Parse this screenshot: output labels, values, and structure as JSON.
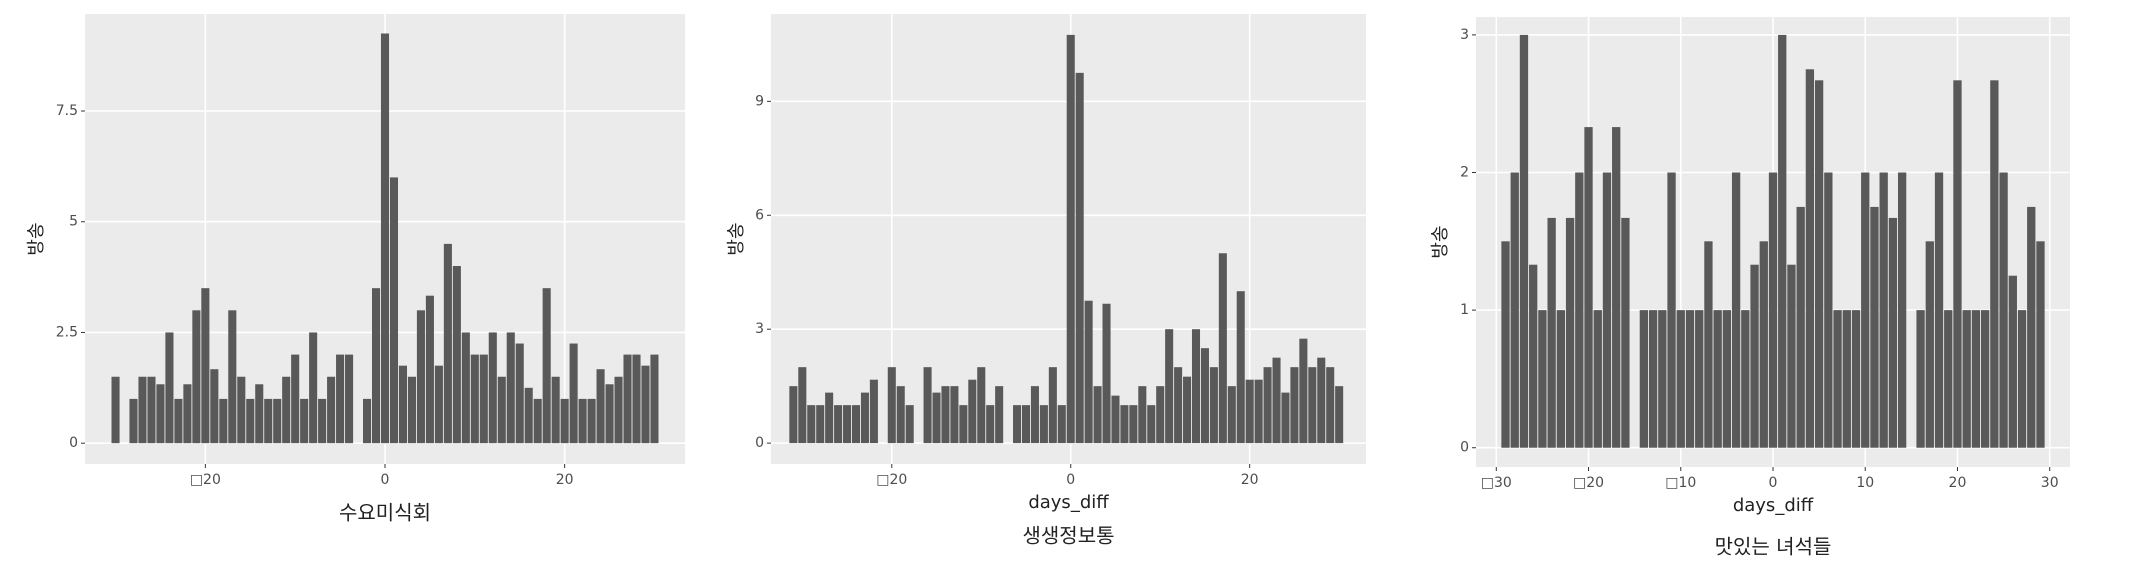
{
  "chart_data": [
    {
      "type": "bar",
      "title": "수요미식회",
      "y_label": "방송",
      "color": "#595959",
      "grid": true,
      "x": [
        -30,
        -28,
        -27,
        -26,
        -25,
        -24,
        -23,
        -22,
        -21,
        -20,
        -19,
        -18,
        -17,
        -16,
        -15,
        -14,
        -13,
        -12,
        -11,
        -10,
        -9,
        -8,
        -7,
        -6,
        -5,
        -4,
        -2,
        -1,
        0,
        1,
        2,
        3,
        4,
        5,
        6,
        7,
        8,
        9,
        10,
        11,
        12,
        13,
        14,
        15,
        16,
        17,
        18,
        19,
        20,
        21,
        22,
        23,
        24,
        25,
        26,
        27,
        28,
        29,
        30
      ],
      "values": [
        1.5,
        1,
        1.5,
        1.5,
        1.33,
        2.5,
        1,
        1.33,
        3,
        3.5,
        1.67,
        1,
        3,
        1.5,
        1,
        1.33,
        1,
        1,
        1.5,
        2,
        1,
        2.5,
        1,
        1.5,
        2,
        2,
        1,
        3.5,
        9.25,
        6,
        1.75,
        1.5,
        3,
        3.33,
        1.75,
        4.5,
        4,
        2.5,
        2,
        2,
        2.5,
        1.5,
        2.5,
        2.25,
        1.25,
        1,
        3.5,
        1.5,
        1,
        2.25,
        1,
        1,
        1.67,
        1.33,
        1.5,
        2,
        2,
        1.75,
        2
      ],
      "xlim": [
        -33.4,
        33.4
      ],
      "ylim": [
        -0.47,
        9.69
      ],
      "xticks": [
        {
          "value": -20,
          "label": "□20"
        },
        0,
        20
      ],
      "yticks": [
        0,
        2.5,
        5,
        7.5
      ]
    },
    {
      "type": "bar",
      "title": "생생정보통",
      "x_label": "days_diff",
      "y_label": "방송",
      "color": "#595959",
      "grid": true,
      "x": [
        -31,
        -30,
        -29,
        -28,
        -27,
        -26,
        -25,
        -24,
        -23,
        -22,
        -20,
        -19,
        -18,
        -16,
        -15,
        -14,
        -13,
        -12,
        -11,
        -10,
        -9,
        -8,
        -6,
        -5,
        -4,
        -3,
        -2,
        -1,
        0,
        1,
        2,
        3,
        4,
        5,
        6,
        7,
        8,
        9,
        10,
        11,
        12,
        13,
        14,
        15,
        16,
        17,
        18,
        19,
        20,
        21,
        22,
        23,
        24,
        25,
        26,
        27,
        28,
        29,
        30
      ],
      "values": [
        1.5,
        2,
        1,
        1,
        1.33,
        1,
        1,
        1,
        1.33,
        1.67,
        2,
        1.5,
        1,
        2,
        1.33,
        1.5,
        1.5,
        1,
        1.67,
        2,
        1,
        1.5,
        1,
        1,
        1.5,
        1,
        2,
        1,
        10.75,
        9.75,
        3.75,
        1.5,
        3.67,
        1.25,
        1,
        1,
        1.5,
        1,
        1.5,
        3,
        2,
        1.75,
        3,
        2.5,
        2,
        5,
        1.5,
        4,
        1.67,
        1.67,
        2,
        2.25,
        1.33,
        2,
        2.75,
        2,
        2.25,
        2,
        1.5
      ],
      "xlim": [
        -33.5,
        33
      ],
      "ylim": [
        -0.55,
        11.3
      ],
      "xticks": [
        {
          "value": -20,
          "label": "□20"
        },
        0,
        20
      ],
      "yticks": [
        0,
        3,
        6,
        9
      ]
    },
    {
      "type": "bar",
      "title": "맛있는 녀석들",
      "x_label": "days_diff",
      "y_label": "방송",
      "color": "#595959",
      "grid": true,
      "x": [
        -29,
        -28,
        -27,
        -26,
        -25,
        -24,
        -23,
        -22,
        -21,
        -20,
        -19,
        -18,
        -17,
        -16,
        -14,
        -13,
        -12,
        -11,
        -10,
        -9,
        -8,
        -7,
        -6,
        -5,
        -4,
        -3,
        -2,
        -1,
        0,
        1,
        2,
        3,
        4,
        5,
        6,
        7,
        8,
        9,
        10,
        11,
        12,
        13,
        14,
        16,
        17,
        18,
        19,
        20,
        21,
        22,
        23,
        24,
        25,
        26,
        27,
        28,
        29
      ],
      "values": [
        1.5,
        2,
        3,
        1.33,
        1,
        1.67,
        1,
        1.67,
        2,
        2.33,
        1,
        2,
        2.33,
        1.67,
        1,
        1,
        1,
        2,
        1,
        1,
        1,
        1.5,
        1,
        1,
        2,
        1,
        1.33,
        1.5,
        2,
        3,
        1.33,
        1.75,
        2.75,
        2.67,
        2,
        1,
        1,
        1,
        2,
        1.75,
        2,
        1.67,
        2,
        1,
        1.5,
        2,
        1,
        2.67,
        1,
        1,
        1,
        2.67,
        2,
        1.25,
        1,
        1.75,
        1.5
      ],
      "xlim": [
        -32.2,
        32.2
      ],
      "ylim": [
        -0.14,
        3.13
      ],
      "xticks": [
        {
          "value": -30,
          "label": "□30"
        },
        {
          "value": -20,
          "label": "□20"
        },
        {
          "value": -10,
          "label": "□10"
        },
        0,
        10,
        20,
        30
      ],
      "yticks": [
        0,
        1,
        2,
        3
      ]
    }
  ]
}
